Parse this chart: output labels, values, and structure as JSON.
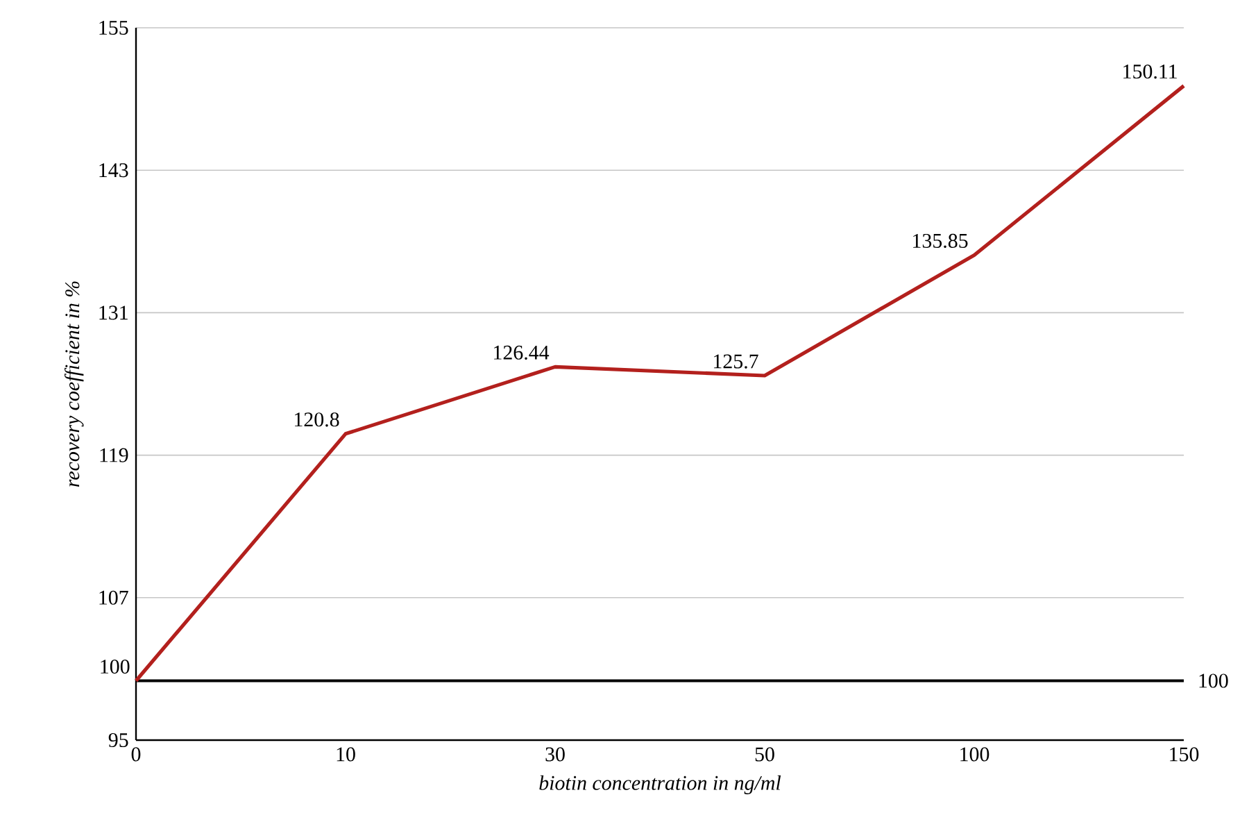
{
  "chart_data": {
    "type": "line",
    "xlabel": "biotin concentration in ng/ml",
    "ylabel": "recovery coefficient in %",
    "categories": [
      "0",
      "10",
      "30",
      "50",
      "100",
      "150"
    ],
    "series": [
      {
        "color": "#b3201d",
        "values": [
          100,
          120.8,
          126.44,
          125.7,
          135.85,
          150.11
        ]
      }
    ],
    "ylim": [
      95,
      155
    ],
    "yticks": [
      95,
      107,
      119,
      131,
      143,
      155
    ],
    "grid": "y",
    "data_labels": true,
    "marker": "none",
    "line_style": "solid",
    "ref_lines": [
      {
        "axis": "y",
        "value": 100,
        "label": "100",
        "color": "#000000"
      }
    ]
  }
}
